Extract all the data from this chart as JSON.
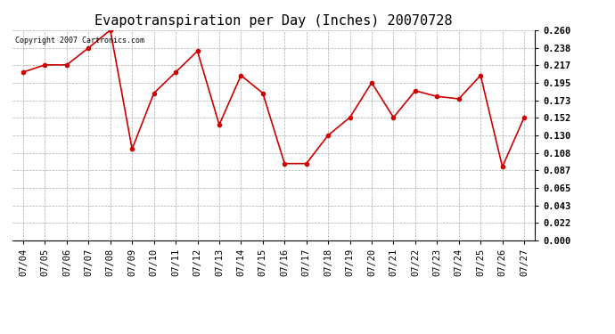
{
  "title": "Evapotranspiration per Day (Inches) 20070728",
  "copyright_text": "Copyright 2007 Cartronics.com",
  "dates": [
    "07/04",
    "07/05",
    "07/06",
    "07/07",
    "07/08",
    "07/09",
    "07/10",
    "07/11",
    "07/12",
    "07/13",
    "07/14",
    "07/15",
    "07/16",
    "07/17",
    "07/18",
    "07/19",
    "07/20",
    "07/21",
    "07/22",
    "07/23",
    "07/24",
    "07/25",
    "07/26",
    "07/27"
  ],
  "values": [
    0.208,
    0.217,
    0.217,
    0.238,
    0.26,
    0.113,
    0.182,
    0.208,
    0.234,
    0.143,
    0.204,
    0.182,
    0.095,
    0.095,
    0.13,
    0.152,
    0.195,
    0.152,
    0.185,
    0.178,
    0.175,
    0.204,
    0.091,
    0.152
  ],
  "line_color": "#cc0000",
  "marker": "o",
  "bg_color": "#ffffff",
  "plot_bg_color": "#ffffff",
  "grid_color": "#aaaaaa",
  "yticks": [
    0.0,
    0.022,
    0.043,
    0.065,
    0.087,
    0.108,
    0.13,
    0.152,
    0.173,
    0.195,
    0.217,
    0.238,
    0.26
  ],
  "ylim": [
    0.0,
    0.26
  ],
  "title_fontsize": 11,
  "copyright_fontsize": 6,
  "tick_fontsize": 7.5
}
